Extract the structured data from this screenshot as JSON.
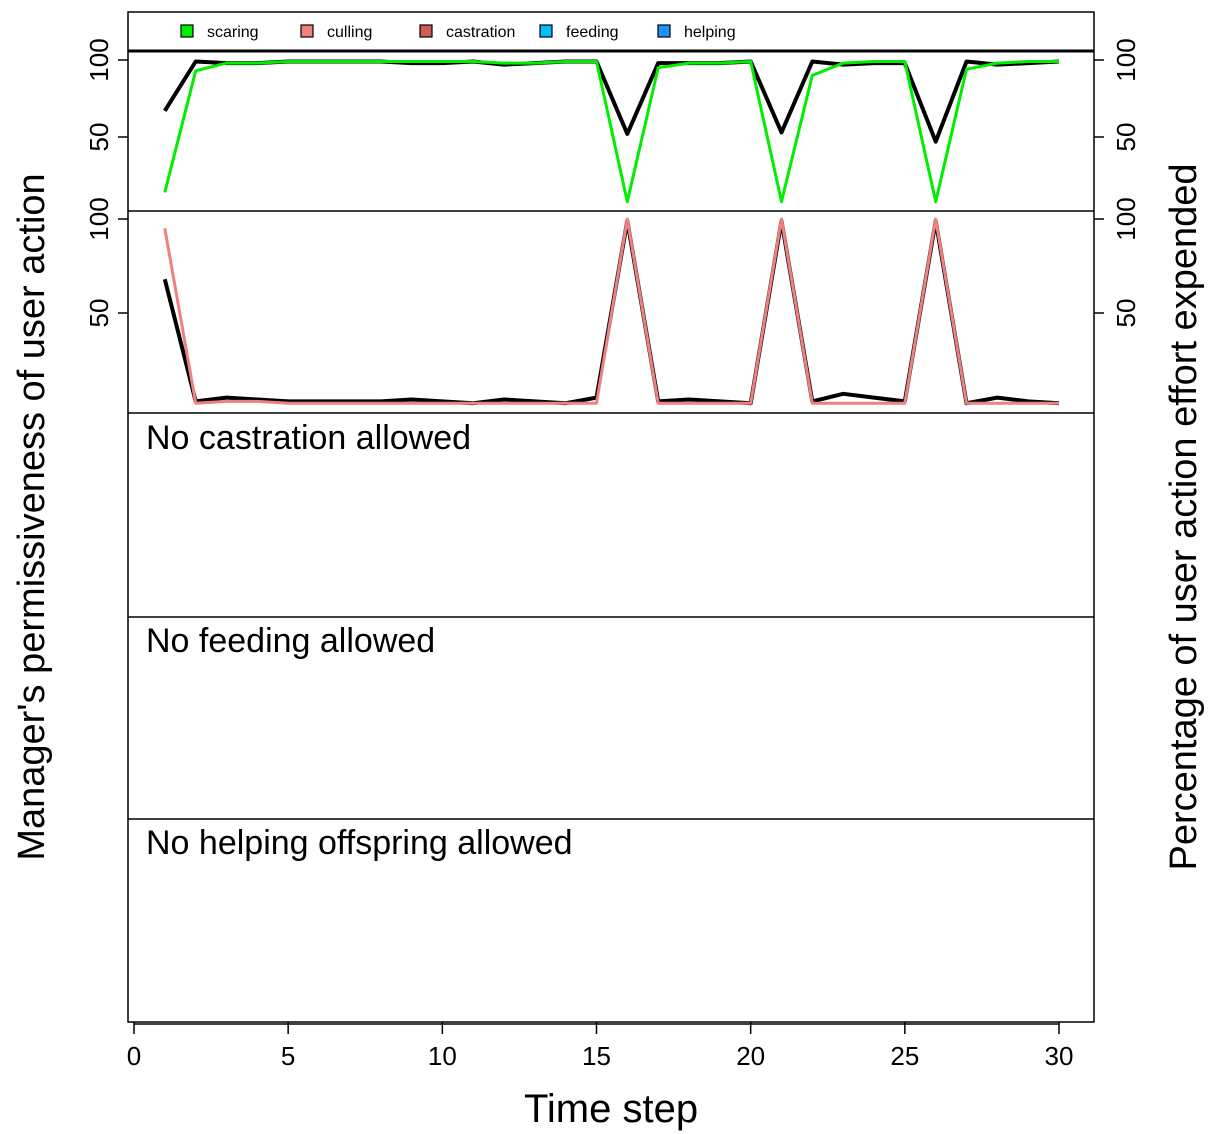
{
  "chart_data": {
    "type": "line",
    "xlabel": "Time step",
    "ylabel_left": "Manager's permissiveness of user action",
    "ylabel_right": "Percentage of user action effort expended",
    "xlim": [
      0,
      30
    ],
    "x_ticks": [
      "0",
      "5",
      "10",
      "15",
      "20",
      "25",
      "30"
    ],
    "x_tick_values": [
      0,
      5,
      10,
      15,
      20,
      25,
      30
    ],
    "legend": {
      "placement": "top",
      "items": [
        {
          "label": "scaring",
          "color": "#00ee00"
        },
        {
          "label": "culling",
          "color": "#f08080"
        },
        {
          "label": "castration",
          "color": "#cd5c5c"
        },
        {
          "label": "feeding",
          "color": "#00bfff"
        },
        {
          "label": "helping",
          "color": "#1e90ff"
        }
      ]
    },
    "panels": [
      {
        "id": "scaring",
        "ylim": [
          0,
          100
        ],
        "y_ticks": [
          "50",
          "100"
        ],
        "y_tick_values": [
          50,
          100
        ],
        "series": [
          {
            "role": "permissiveness",
            "color": "#000000",
            "x": [
              1,
              2,
              3,
              4,
              5,
              6,
              7,
              8,
              9,
              10,
              11,
              12,
              13,
              14,
              15,
              16,
              17,
              18,
              19,
              20,
              21,
              22,
              23,
              24,
              25,
              26,
              27,
              28,
              29,
              30
            ],
            "y": [
              67,
              99,
              98,
              98,
              99,
              99,
              99,
              99,
              98,
              98,
              99,
              97,
              98,
              99,
              99,
              52,
              98,
              98,
              98,
              99,
              53,
              99,
              97,
              98,
              98,
              47,
              99,
              97,
              98,
              99
            ]
          },
          {
            "role": "effort",
            "color": "#00ee00",
            "x": [
              1,
              2,
              3,
              4,
              5,
              6,
              7,
              8,
              9,
              10,
              11,
              12,
              13,
              14,
              15,
              16,
              17,
              18,
              19,
              20,
              21,
              22,
              23,
              24,
              25,
              26,
              27,
              28,
              29,
              30
            ],
            "y": [
              14,
              93,
              98,
              98,
              99,
              99,
              99,
              99,
              99,
              99,
              99,
              98,
              98,
              99,
              99,
              8,
              95,
              98,
              98,
              99,
              8,
              90,
              98,
              99,
              99,
              8,
              94,
              98,
              99,
              99
            ]
          }
        ]
      },
      {
        "id": "culling",
        "ylim": [
          0,
          100
        ],
        "y_ticks": [
          "50",
          "100"
        ],
        "y_tick_values": [
          50,
          100
        ],
        "series": [
          {
            "role": "permissiveness",
            "color": "#000000",
            "x": [
              1,
              2,
              3,
              4,
              5,
              6,
              7,
              8,
              9,
              10,
              11,
              12,
              13,
              14,
              15,
              16,
              17,
              18,
              19,
              20,
              21,
              22,
              23,
              24,
              25,
              26,
              27,
              28,
              29,
              30
            ],
            "y": [
              68,
              3,
              5,
              4,
              3,
              3,
              3,
              3,
              4,
              3,
              2,
              4,
              3,
              2,
              5,
              99,
              3,
              4,
              3,
              2,
              99,
              3,
              7,
              5,
              3,
              99,
              2,
              5,
              3,
              2
            ]
          },
          {
            "role": "effort",
            "color": "#f08080",
            "x": [
              1,
              2,
              3,
              4,
              5,
              6,
              7,
              8,
              9,
              10,
              11,
              12,
              13,
              14,
              15,
              16,
              17,
              18,
              19,
              20,
              21,
              22,
              23,
              24,
              25,
              26,
              27,
              28,
              29,
              30
            ],
            "y": [
              95,
              2,
              3,
              3,
              2,
              2,
              2,
              2,
              2,
              2,
              2,
              2,
              2,
              2,
              2,
              100,
              2,
              2,
              2,
              2,
              100,
              2,
              2,
              2,
              2,
              100,
              2,
              2,
              2,
              2
            ]
          }
        ]
      },
      {
        "id": "castration",
        "note": "No castration allowed"
      },
      {
        "id": "feeding",
        "note": "No feeding allowed"
      },
      {
        "id": "helping",
        "note": "No helping offspring allowed"
      }
    ]
  }
}
